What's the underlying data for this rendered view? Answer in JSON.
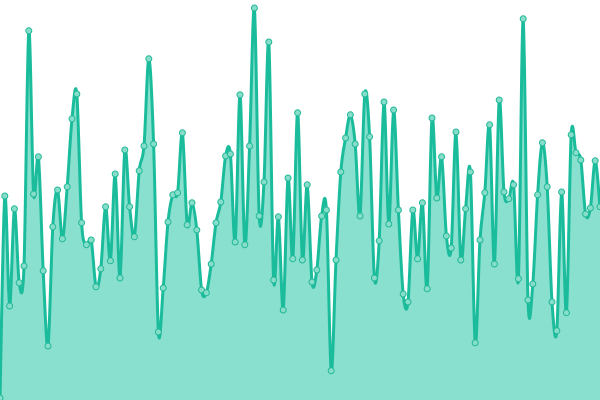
{
  "chart_data": {
    "type": "area",
    "title": "",
    "xlabel": "",
    "ylabel": "",
    "axes_visible": false,
    "grid": false,
    "legend": "none",
    "smooth": true,
    "markers": true,
    "ylim": [
      0,
      100
    ],
    "colors": {
      "line": "#1abc9c",
      "fill": "#8ae0cf",
      "marker": "#86ddca"
    },
    "series": [
      {
        "values": [
          0.5,
          51,
          23.5,
          47.8,
          29.3,
          33.5,
          92.3,
          51.5,
          60.8,
          32.3,
          13.5,
          43.3,
          52.5,
          40.3,
          53.3,
          70.3,
          76.5,
          44.3,
          38.8,
          40,
          28.3,
          32.8,
          48.3,
          34.8,
          56.5,
          30.5,
          62.5,
          48.3,
          40.8,
          57.3,
          63.5,
          85.3,
          64,
          17,
          28,
          44.5,
          51.3,
          51.8,
          66.8,
          43.8,
          49.3,
          42.5,
          27.5,
          26.8,
          34,
          44.3,
          49.5,
          61,
          61.5,
          39.5,
          76.3,
          38.8,
          63.5,
          98,
          46,
          54.5,
          89.5,
          30,
          45.8,
          22.5,
          55.5,
          35.3,
          71.8,
          35,
          53.8,
          29.5,
          32.5,
          46,
          47.5,
          7.3,
          35,
          57,
          65.5,
          71.3,
          64,
          46,
          76.5,
          65.8,
          30.5,
          39.8,
          74.5,
          44,
          72.5,
          47.5,
          26.5,
          24.5,
          47.5,
          35.3,
          49.3,
          27.8,
          70.5,
          50.5,
          60.8,
          41,
          38,
          67,
          35,
          47.8,
          57,
          14.3,
          40,
          51.8,
          68.8,
          34,
          75,
          52,
          50.3,
          53.8,
          30.3,
          95.3,
          25,
          29,
          51.3,
          64.3,
          53.3,
          24.5,
          17.3,
          52,
          21.8,
          66.3,
          61.8,
          60,
          46.5,
          48,
          59.8,
          48.3
        ]
      }
    ]
  }
}
